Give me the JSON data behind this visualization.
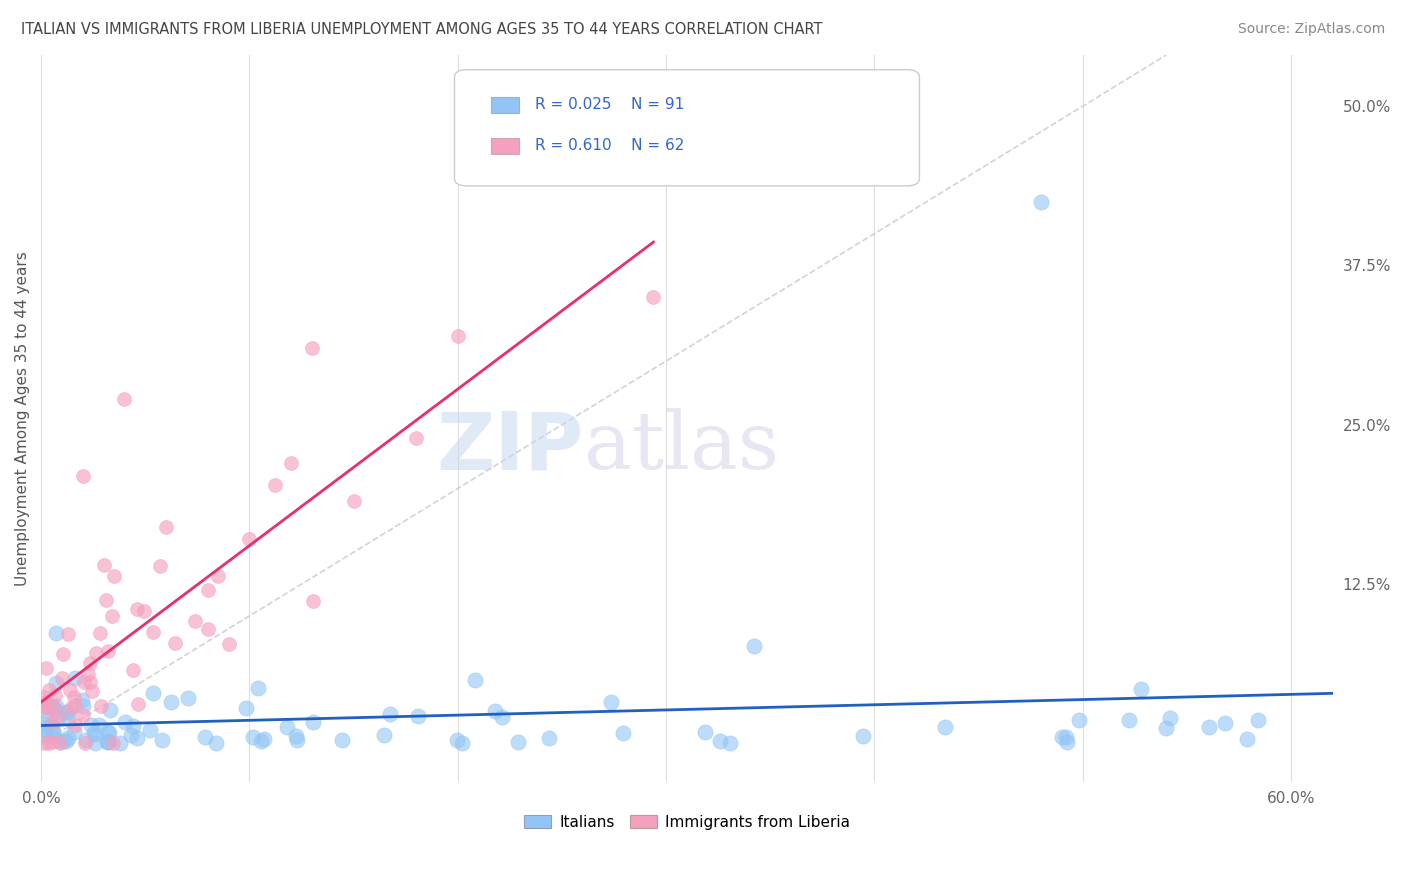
{
  "title": "ITALIAN VS IMMIGRANTS FROM LIBERIA UNEMPLOYMENT AMONG AGES 35 TO 44 YEARS CORRELATION CHART",
  "source": "Source: ZipAtlas.com",
  "ylabel": "Unemployment Among Ages 35 to 44 years",
  "xlim": [
    0.0,
    0.62
  ],
  "ylim": [
    -0.03,
    0.54
  ],
  "xticklabels_show": [
    "0.0%",
    "60.0%"
  ],
  "xticklabels_pos": [
    0.0,
    0.6
  ],
  "yticks_right": [
    0.125,
    0.25,
    0.375,
    0.5
  ],
  "yticklabels_right": [
    "12.5%",
    "25.0%",
    "37.5%",
    "50.0%"
  ],
  "legend_r1": "R = 0.025",
  "legend_n1": "N = 91",
  "legend_r2": "R = 0.610",
  "legend_n2": "N = 62",
  "color_italian": "#92c5f5",
  "color_liberia": "#f5a0be",
  "color_line_italian": "#2060c0",
  "color_line_liberia": "#e8306a",
  "watermark_zip": "ZIP",
  "watermark_atlas": "atlas",
  "background_color": "#ffffff",
  "grid_color": "#dddddd",
  "title_color": "#444444",
  "source_color": "#888888",
  "legend_text_color": "#3366cc",
  "axis_label_color": "#555555",
  "tick_color": "#666666"
}
